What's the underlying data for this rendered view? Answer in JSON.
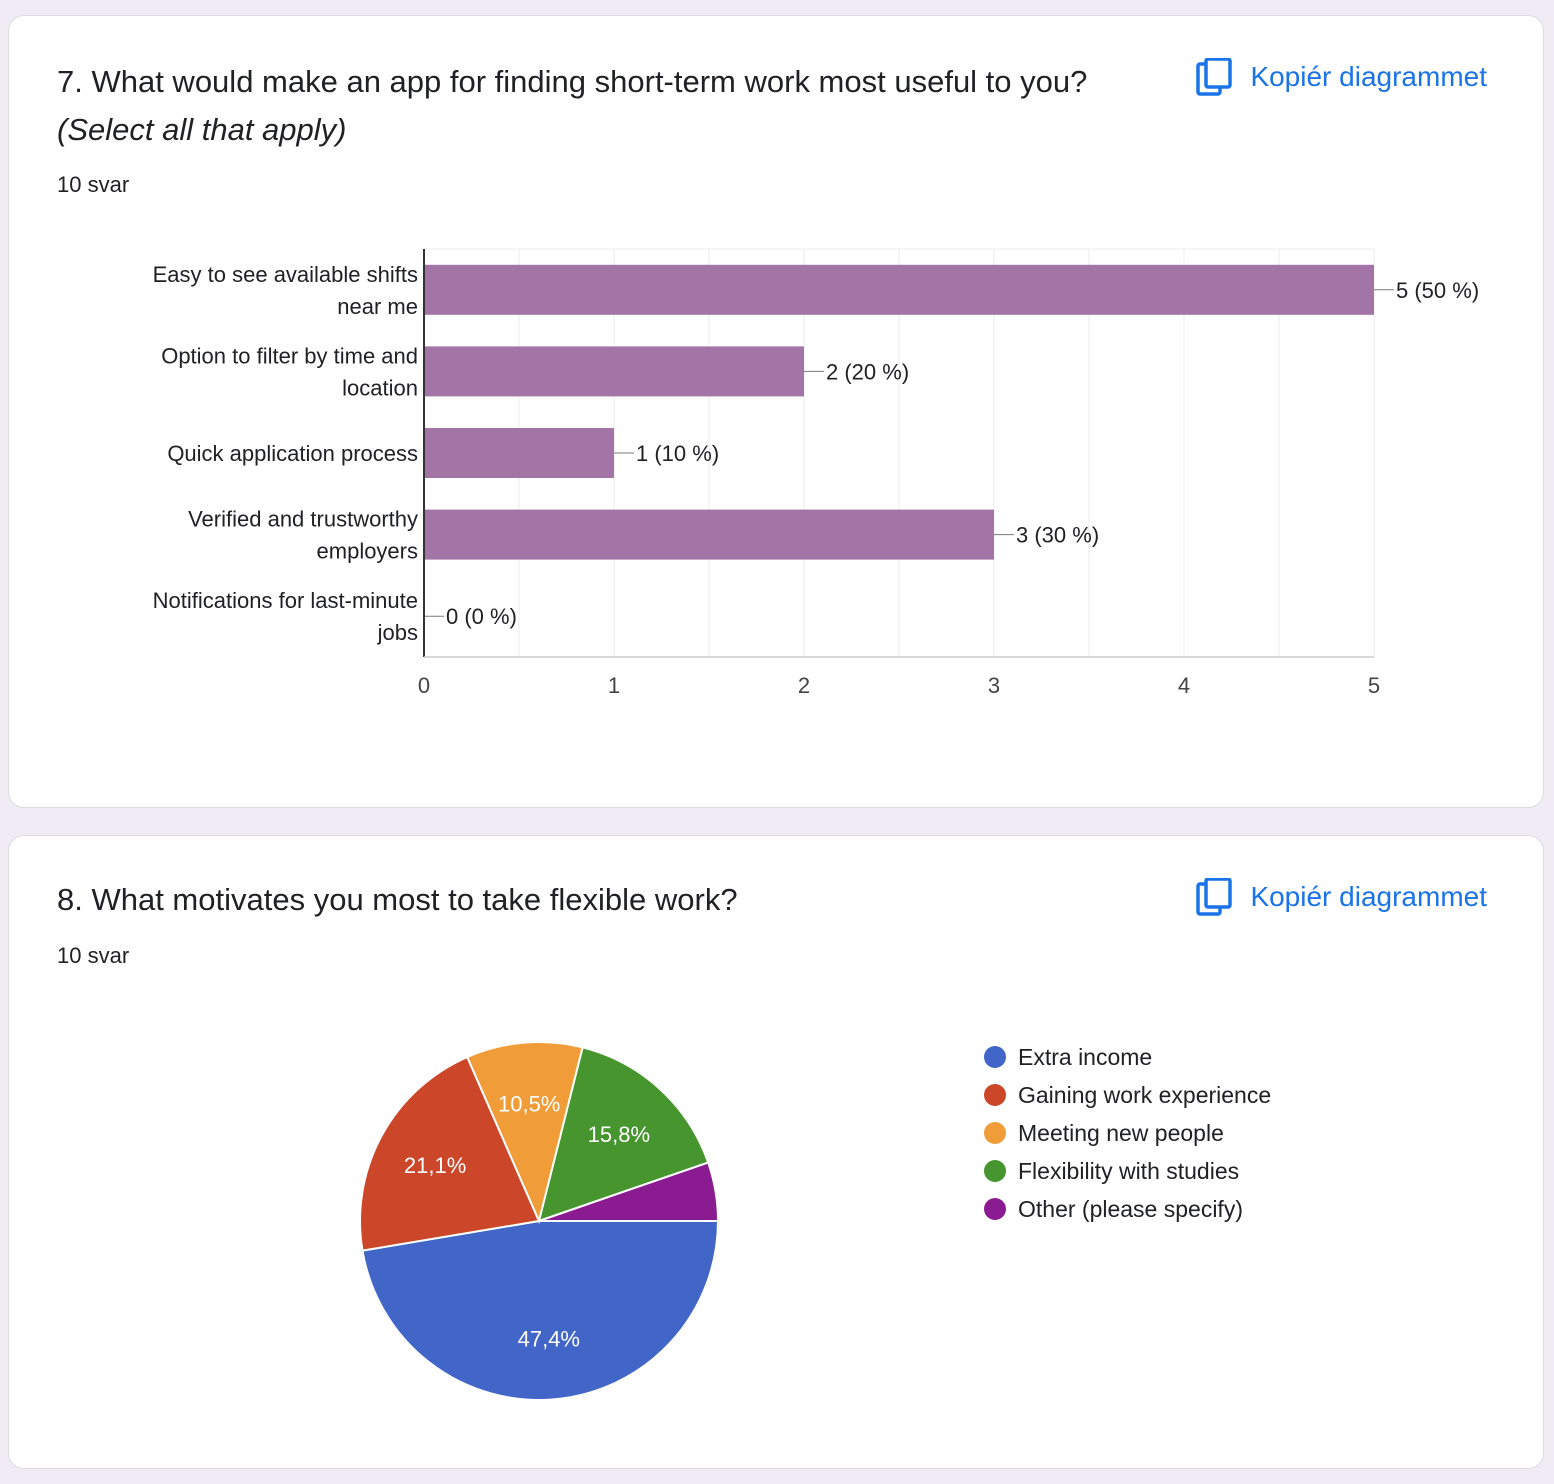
{
  "question7": {
    "title": "7. What would make an app for finding short-term work most useful to you?",
    "hint": "(Select all that apply)",
    "responses": "10 svar",
    "copy_label": "Kopiér diagrammet",
    "icon": "copy-icon",
    "chart_data": {
      "type": "bar",
      "orientation": "horizontal",
      "categories": [
        "Easy to see available shifts near me",
        "Option to filter by time and location",
        "Quick application process",
        "Verified and trustworthy employers",
        "Notifications for last-minute jobs"
      ],
      "values": [
        5,
        2,
        1,
        3,
        0
      ],
      "data_labels": [
        "5 (50 %)",
        "2 (20 %)",
        "1 (10 %)",
        "3 (30 %)",
        "0 (0 %)"
      ],
      "x_ticks": [
        "0",
        "1",
        "2",
        "3",
        "4",
        "5"
      ],
      "xlim": [
        0,
        5
      ],
      "grid": true,
      "color": "#a275a6"
    }
  },
  "question8": {
    "title": "8. What motivates you most to take flexible work?",
    "responses": "10 svar",
    "copy_label": "Kopiér diagrammet",
    "icon": "copy-icon",
    "chart_data": {
      "type": "pie",
      "labels": [
        "Extra income",
        "Gaining work experience",
        "Meeting new people",
        "Flexibility with studies",
        "Other (please specify)"
      ],
      "values": [
        47.4,
        21.1,
        10.5,
        15.8,
        5.3
      ],
      "slice_labels": [
        "47,4%",
        "21,1%",
        "10,5%",
        "15,8%",
        ""
      ],
      "colors": [
        "#4266c7",
        "#cc4729",
        "#f09c38",
        "#47952f",
        "#8a1b91"
      ],
      "legend_position": "right"
    }
  }
}
